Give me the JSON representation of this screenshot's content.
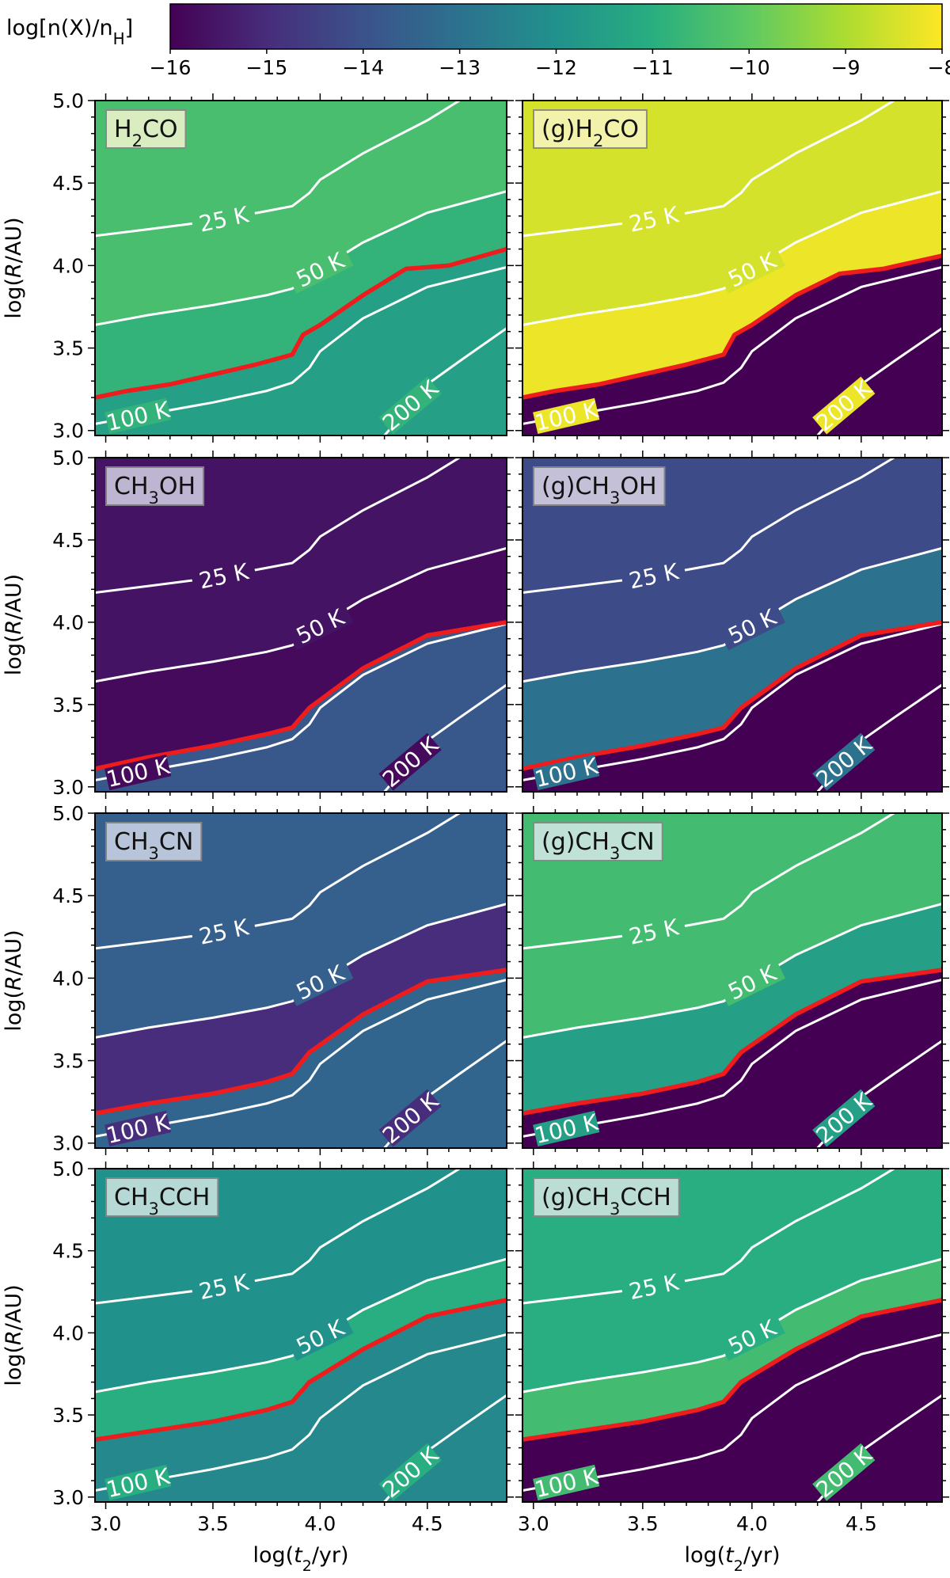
{
  "colorbar": {
    "label_main": "log[n(X)/n",
    "label_sub": "H",
    "label_close": "]",
    "min": -16,
    "max": -8,
    "ticks": [
      "−16",
      "−15",
      "−14",
      "−13",
      "−12",
      "−11",
      "−10",
      "−9",
      "−8"
    ],
    "colors": [
      "#440154",
      "#472d7b",
      "#3b528b",
      "#2c728e",
      "#21918c",
      "#28ae80",
      "#5ec962",
      "#addc30",
      "#fde725"
    ]
  },
  "axes": {
    "xlabel_pre": "log(",
    "xlabel_var": "t",
    "xlabel_sub": "2",
    "xlabel_post": "/yr)",
    "ylabel_pre": "log(",
    "ylabel_var": "R",
    "ylabel_post": "/AU)",
    "xticks": [
      "3.0",
      "3.5",
      "4.0",
      "4.5"
    ],
    "yticks": [
      "3.0",
      "3.5",
      "4.0",
      "4.5",
      "5.0"
    ]
  },
  "chart_data": {
    "type": "heatmap",
    "x_range": [
      2.95,
      4.87
    ],
    "y_range": [
      2.97,
      5.0
    ],
    "x_tick_values": [
      3.0,
      3.5,
      4.0,
      4.5
    ],
    "y_tick_values": [
      3.0,
      3.5,
      4.0,
      4.5,
      5.0
    ],
    "colorbar_range": [
      -16,
      -8
    ],
    "contours": [
      {
        "label": "25 K",
        "points": [
          [
            2.95,
            4.18
          ],
          [
            3.2,
            4.22
          ],
          [
            3.5,
            4.27
          ],
          [
            3.75,
            4.33
          ],
          [
            3.87,
            4.36
          ],
          [
            3.95,
            4.44
          ],
          [
            4.0,
            4.52
          ],
          [
            4.2,
            4.68
          ],
          [
            4.5,
            4.88
          ],
          [
            4.65,
            5.0
          ]
        ]
      },
      {
        "label": "50 K",
        "points": [
          [
            2.95,
            3.64
          ],
          [
            3.2,
            3.7
          ],
          [
            3.5,
            3.76
          ],
          [
            3.75,
            3.82
          ],
          [
            3.87,
            3.86
          ],
          [
            3.95,
            3.93
          ],
          [
            4.05,
            4.02
          ],
          [
            4.2,
            4.14
          ],
          [
            4.5,
            4.32
          ],
          [
            4.87,
            4.45
          ]
        ]
      },
      {
        "label": "100 K",
        "points": [
          [
            2.95,
            3.04
          ],
          [
            3.2,
            3.1
          ],
          [
            3.5,
            3.17
          ],
          [
            3.75,
            3.24
          ],
          [
            3.87,
            3.29
          ],
          [
            3.95,
            3.38
          ],
          [
            4.0,
            3.48
          ],
          [
            4.2,
            3.68
          ],
          [
            4.5,
            3.87
          ],
          [
            4.87,
            3.99
          ]
        ]
      },
      {
        "label": "200 K",
        "points": [
          [
            4.3,
            2.97
          ],
          [
            4.4,
            3.12
          ],
          [
            4.5,
            3.28
          ],
          [
            4.65,
            3.42
          ],
          [
            4.87,
            3.62
          ]
        ]
      }
    ],
    "panels": [
      {
        "title_pre": "",
        "title_main": "H",
        "title_sub": "2",
        "title_post": "CO",
        "label_bg": "#e6f2c8",
        "sublimation_front": [
          [
            2.95,
            3.2
          ],
          [
            3.1,
            3.24
          ],
          [
            3.3,
            3.28
          ],
          [
            3.5,
            3.34
          ],
          [
            3.7,
            3.4
          ],
          [
            3.87,
            3.46
          ],
          [
            3.92,
            3.58
          ],
          [
            4.0,
            3.64
          ],
          [
            4.2,
            3.82
          ],
          [
            4.4,
            3.98
          ],
          [
            4.6,
            4.0
          ],
          [
            4.87,
            4.1
          ]
        ],
        "regions": [
          {
            "name": "cold",
            "value": -10.4
          },
          {
            "name": "warm",
            "value": -10.8
          },
          {
            "name": "hot",
            "value": -11.5
          }
        ]
      },
      {
        "title_pre": "(g)",
        "title_main": "H",
        "title_sub": "2",
        "title_post": "CO",
        "label_bg": "#f6f4b6",
        "sublimation_front": [
          [
            2.95,
            3.2
          ],
          [
            3.1,
            3.24
          ],
          [
            3.3,
            3.28
          ],
          [
            3.5,
            3.34
          ],
          [
            3.7,
            3.4
          ],
          [
            3.87,
            3.46
          ],
          [
            3.92,
            3.58
          ],
          [
            4.0,
            3.64
          ],
          [
            4.2,
            3.82
          ],
          [
            4.4,
            3.95
          ],
          [
            4.6,
            3.98
          ],
          [
            4.87,
            4.06
          ]
        ],
        "regions": [
          {
            "name": "cold",
            "value": -8.5
          },
          {
            "name": "warm",
            "value": -8.2
          },
          {
            "name": "hot",
            "value": -16.0
          }
        ]
      },
      {
        "title_pre": "",
        "title_main": "CH",
        "title_sub": "3",
        "title_post": "OH",
        "label_bg": "#c9c3dc",
        "sublimation_front": [
          [
            2.95,
            3.11
          ],
          [
            3.2,
            3.18
          ],
          [
            3.5,
            3.25
          ],
          [
            3.75,
            3.32
          ],
          [
            3.87,
            3.36
          ],
          [
            3.95,
            3.48
          ],
          [
            4.2,
            3.72
          ],
          [
            4.5,
            3.92
          ],
          [
            4.87,
            4.0
          ]
        ],
        "regions": [
          {
            "name": "cold",
            "value": -15.6
          },
          {
            "name": "warm",
            "value": -15.8
          },
          {
            "name": "hot",
            "value": -13.8
          }
        ]
      },
      {
        "title_pre": "(g)",
        "title_main": "CH",
        "title_sub": "3",
        "title_post": "OH",
        "label_bg": "#cfcadf",
        "sublimation_front": [
          [
            2.95,
            3.11
          ],
          [
            3.2,
            3.18
          ],
          [
            3.5,
            3.25
          ],
          [
            3.75,
            3.32
          ],
          [
            3.87,
            3.36
          ],
          [
            3.95,
            3.48
          ],
          [
            4.2,
            3.72
          ],
          [
            4.5,
            3.92
          ],
          [
            4.87,
            4.0
          ]
        ],
        "regions": [
          {
            "name": "cold",
            "value": -14.2
          },
          {
            "name": "warm",
            "value": -13.0
          },
          {
            "name": "hot",
            "value": -16.0
          }
        ]
      },
      {
        "title_pre": "",
        "title_main": "CH",
        "title_sub": "3",
        "title_post": "CN",
        "label_bg": "#c3cde0",
        "sublimation_front": [
          [
            2.95,
            3.18
          ],
          [
            3.2,
            3.24
          ],
          [
            3.5,
            3.3
          ],
          [
            3.75,
            3.37
          ],
          [
            3.87,
            3.42
          ],
          [
            3.95,
            3.55
          ],
          [
            4.2,
            3.78
          ],
          [
            4.5,
            3.98
          ],
          [
            4.87,
            4.05
          ]
        ],
        "regions": [
          {
            "name": "cold",
            "value": -13.6
          },
          {
            "name": "warm",
            "value": -15.0
          },
          {
            "name": "hot",
            "value": -13.4
          }
        ]
      },
      {
        "title_pre": "(g)",
        "title_main": "CH",
        "title_sub": "3",
        "title_post": "CN",
        "label_bg": "#cbe6df",
        "sublimation_front": [
          [
            2.95,
            3.18
          ],
          [
            3.2,
            3.24
          ],
          [
            3.5,
            3.3
          ],
          [
            3.75,
            3.37
          ],
          [
            3.87,
            3.42
          ],
          [
            3.95,
            3.55
          ],
          [
            4.2,
            3.78
          ],
          [
            4.5,
            3.98
          ],
          [
            4.87,
            4.05
          ]
        ],
        "regions": [
          {
            "name": "cold",
            "value": -10.5
          },
          {
            "name": "warm",
            "value": -11.5
          },
          {
            "name": "hot",
            "value": -16.0
          }
        ]
      },
      {
        "title_pre": "",
        "title_main": "CH",
        "title_sub": "3",
        "title_post": "CCH",
        "label_bg": "#c3e0dc",
        "sublimation_front": [
          [
            2.95,
            3.35
          ],
          [
            3.2,
            3.4
          ],
          [
            3.5,
            3.46
          ],
          [
            3.75,
            3.53
          ],
          [
            3.87,
            3.58
          ],
          [
            3.95,
            3.7
          ],
          [
            4.2,
            3.9
          ],
          [
            4.5,
            4.1
          ],
          [
            4.87,
            4.2
          ]
        ],
        "regions": [
          {
            "name": "cold",
            "value": -12.0
          },
          {
            "name": "warm",
            "value": -11.0
          },
          {
            "name": "hot",
            "value": -12.3
          }
        ]
      },
      {
        "title_pre": "(g)",
        "title_main": "CH",
        "title_sub": "3",
        "title_post": "CCH",
        "label_bg": "#c8e2dc",
        "sublimation_front": [
          [
            2.95,
            3.35
          ],
          [
            3.2,
            3.4
          ],
          [
            3.5,
            3.46
          ],
          [
            3.75,
            3.53
          ],
          [
            3.87,
            3.58
          ],
          [
            3.95,
            3.7
          ],
          [
            4.2,
            3.9
          ],
          [
            4.5,
            4.1
          ],
          [
            4.87,
            4.2
          ]
        ],
        "regions": [
          {
            "name": "cold",
            "value": -11.0
          },
          {
            "name": "warm",
            "value": -10.5
          },
          {
            "name": "hot",
            "value": -16.0
          }
        ]
      }
    ]
  }
}
